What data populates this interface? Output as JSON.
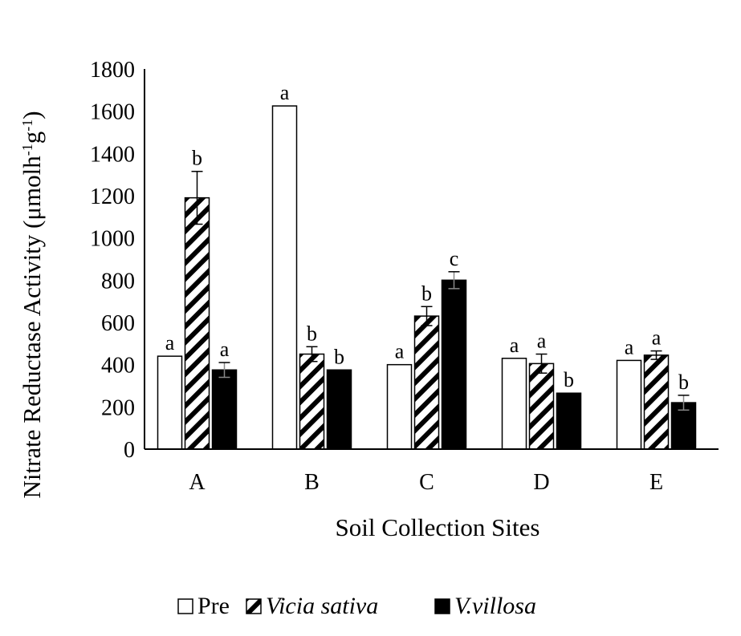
{
  "chart_data": {
    "type": "bar",
    "title": "",
    "xlabel": "Soil Collection Sites",
    "ylabel": "Nitrate Reductase Activity (μmolh",
    "ylabel_sup1": "-1",
    "ylabel_mid": "g",
    "ylabel_sup2": "-1",
    "ylabel_end": ")",
    "ylim": [
      0,
      1800
    ],
    "yticks": [
      "0",
      "200",
      "400",
      "600",
      "800",
      "1000",
      "1200",
      "1400",
      "1600",
      "1800"
    ],
    "categories": [
      "A",
      "B",
      "C",
      "D",
      "E"
    ],
    "legend_position": "bottom",
    "series": [
      {
        "name": "Pre",
        "fill": "#ffffff",
        "pattern": "none",
        "values": [
          440,
          1625,
          400,
          430,
          420
        ],
        "errors": [
          0,
          0,
          0,
          0,
          0
        ],
        "sig": [
          "a",
          "a",
          "a",
          "a",
          "a"
        ]
      },
      {
        "name": "Vicia sativa",
        "fill": "#ffffff",
        "pattern": "hatch",
        "values": [
          1190,
          450,
          630,
          405,
          445
        ],
        "errors": [
          125,
          35,
          45,
          45,
          20
        ],
        "sig": [
          "b",
          "b",
          "b",
          "a",
          "a"
        ]
      },
      {
        "name": "V.villosa",
        "fill": "#000000",
        "pattern": "none",
        "values": [
          375,
          375,
          800,
          265,
          220
        ],
        "errors": [
          35,
          0,
          40,
          0,
          35
        ],
        "sig": [
          "a",
          "b",
          "c",
          "b",
          "b"
        ]
      }
    ]
  }
}
